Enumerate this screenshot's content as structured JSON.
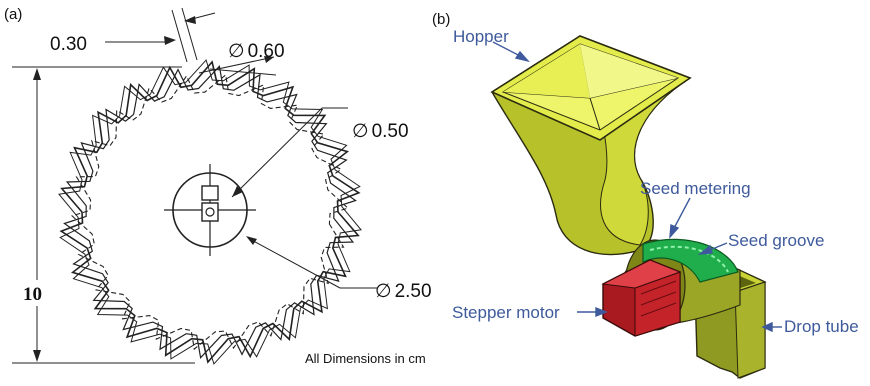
{
  "panels": {
    "a": "(a)",
    "b": "(b)"
  },
  "dimensions": {
    "tooth_gap": "0.30",
    "d_small": "0.60",
    "d_mid": "0.50",
    "d_hub": "2.50",
    "height": "10",
    "phi": "∅",
    "note": "All Dimensions in cm"
  },
  "labels": {
    "hopper": "Hopper",
    "seed_metering": "Seed metering",
    "seed_groove": "Seed groove",
    "stepper_motor": "Stepper motor",
    "drop_tube": "Drop tube"
  },
  "colors": {
    "hopper_fill": "#d9e63a",
    "motor_fill": "#d8232a",
    "groove_fill": "#1fae4b",
    "label_text": "#3e5a9c"
  }
}
